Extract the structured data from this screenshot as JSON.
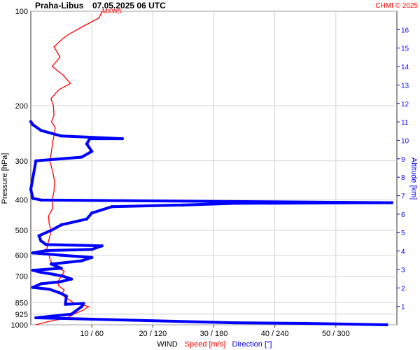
{
  "header": {
    "station": "Praha-Libus",
    "datetime": "07.05.2025 06 UTC",
    "copyright": "CHMI © 2025",
    "mxws_label": "MXWS"
  },
  "chart_data": {
    "type": "line",
    "y_axis_left": {
      "label": "Pressure [hPa]",
      "scale": "log",
      "ticks": [
        "100",
        "200",
        "300",
        "400",
        "500",
        "600",
        "700",
        "850",
        "925",
        "1000"
      ],
      "range": [
        1000,
        100
      ]
    },
    "y_axis_right": {
      "label": "Altitude [km]",
      "ticks": [
        "1",
        "2",
        "3",
        "4",
        "5",
        "6",
        "7",
        "8",
        "9",
        "10",
        "11",
        "12",
        "13",
        "14",
        "15",
        "16"
      ]
    },
    "x_axis": {
      "ticks": [
        "10 / 60",
        "20 / 120",
        "30 / 180",
        "40 / 240",
        "50 / 300"
      ],
      "speed_range": [
        0,
        60
      ],
      "direction_range": [
        0,
        360
      ],
      "label_wind": "WIND",
      "label_speed": "Speed [m/s]",
      "label_direction": "Direction [°]"
    },
    "grid": true,
    "colors": {
      "speed": "#ff0000",
      "direction": "#0000ff",
      "title": "#000000",
      "copyright": "#ff0000"
    },
    "series": [
      {
        "name": "Speed [m/s]",
        "color": "#ff0000",
        "points": [
          [
            0.8,
            1000
          ],
          [
            3,
            975
          ],
          [
            6,
            950
          ],
          [
            7,
            925
          ],
          [
            8.5,
            900
          ],
          [
            9.5,
            875
          ],
          [
            7,
            850
          ],
          [
            6,
            825
          ],
          [
            5,
            800
          ],
          [
            5.5,
            775
          ],
          [
            4.5,
            750
          ],
          [
            4.5,
            725
          ],
          [
            5,
            700
          ],
          [
            5.5,
            675
          ],
          [
            4,
            650
          ],
          [
            3.2,
            625
          ],
          [
            3,
            600
          ],
          [
            2.6,
            575
          ],
          [
            2.8,
            550
          ],
          [
            3.1,
            525
          ],
          [
            3.3,
            500
          ],
          [
            3,
            475
          ],
          [
            2.9,
            450
          ],
          [
            3.6,
            425
          ],
          [
            3.5,
            400
          ],
          [
            3.8,
            375
          ],
          [
            3.9,
            350
          ],
          [
            3.6,
            325
          ],
          [
            3.1,
            300
          ],
          [
            3.4,
            280
          ],
          [
            3.6,
            260
          ],
          [
            3.9,
            245
          ],
          [
            4,
            235
          ],
          [
            3.4,
            225
          ],
          [
            3.8,
            215
          ],
          [
            3.7,
            200
          ],
          [
            3.3,
            190
          ],
          [
            4.6,
            178
          ],
          [
            6.5,
            170
          ],
          [
            5.3,
            160
          ],
          [
            3.5,
            150
          ],
          [
            4.8,
            140
          ],
          [
            3.8,
            130
          ],
          [
            5.3,
            122
          ],
          [
            6.4,
            118
          ],
          [
            8.5,
            112
          ],
          [
            11.2,
            105
          ],
          [
            11.7,
            100
          ]
        ]
      },
      {
        "name": "Direction [°]",
        "color": "#0000ff",
        "points": [
          [
            350,
            1000
          ],
          [
            270,
            990
          ],
          [
            200,
            985
          ],
          [
            5,
            950
          ],
          [
            40,
            925
          ],
          [
            50,
            875
          ],
          [
            52,
            855
          ],
          [
            34,
            860
          ],
          [
            35,
            810
          ],
          [
            28,
            790
          ],
          [
            18,
            770
          ],
          [
            2,
            760
          ],
          [
            10,
            740
          ],
          [
            28,
            730
          ],
          [
            40,
            715
          ],
          [
            32,
            700
          ],
          [
            22,
            690
          ],
          [
            10,
            680
          ],
          [
            2,
            670
          ],
          [
            30,
            660
          ],
          [
            20,
            640
          ],
          [
            50,
            625
          ],
          [
            60,
            610
          ],
          [
            30,
            600
          ],
          [
            2,
            590
          ],
          [
            15,
            580
          ],
          [
            60,
            575
          ],
          [
            70,
            560
          ],
          [
            15,
            555
          ],
          [
            10,
            540
          ],
          [
            8,
            520
          ],
          [
            20,
            500
          ],
          [
            30,
            480
          ],
          [
            55,
            460
          ],
          [
            60,
            440
          ],
          [
            80,
            420
          ],
          [
            150,
            415
          ],
          [
            200,
            410
          ],
          [
            355,
            408
          ],
          [
            10,
            400
          ],
          [
            2,
            395
          ],
          [
            0,
            370
          ],
          [
            5,
            300
          ],
          [
            50,
            292
          ],
          [
            60,
            280
          ],
          [
            55,
            265
          ],
          [
            58,
            255
          ],
          [
            90,
            255
          ],
          [
            30,
            250
          ],
          [
            10,
            240
          ],
          [
            2,
            230
          ],
          [
            0,
            225
          ]
        ]
      }
    ]
  }
}
